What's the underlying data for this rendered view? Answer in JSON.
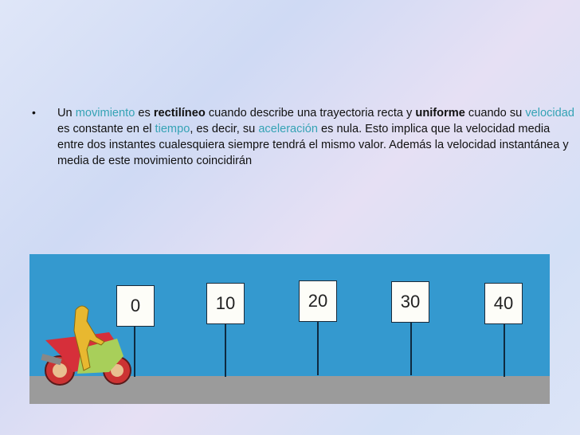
{
  "bullet": "•",
  "paragraph": {
    "t1": "Un ",
    "k1": "movimiento",
    "t2": " es ",
    "b1": "rectilíneo",
    "t3": " cuando describe una trayectoria recta y ",
    "b2": "uniforme",
    "t4": " cuando su ",
    "k2": "velocidad",
    "t5": " es constante en el ",
    "k3": "tiempo",
    "t6": ", es decir, su ",
    "k4": "aceleración",
    "t7": " es nula. Esto implica que la velocidad media entre dos instantes cualesquiera siempre tendrá el mismo valor. Además la velocidad instantánea y media de este movimiento coincidirán"
  },
  "scene": {
    "signs": [
      "0",
      "10",
      "20",
      "30",
      "40"
    ],
    "colors": {
      "sky": "#3499cf",
      "road": "#9b9b9b",
      "keyword": "#35a3b5"
    },
    "icon": "motorcycle-rider-icon"
  }
}
